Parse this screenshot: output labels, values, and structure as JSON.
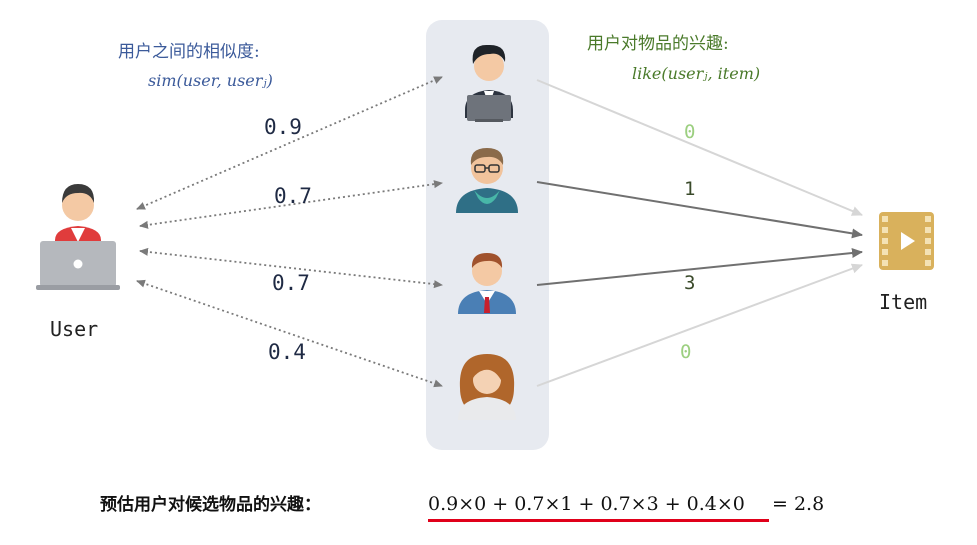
{
  "captions": {
    "user_similarity_title": "用户之间的相似度:",
    "user_similarity_formula": "sim(user, userⱼ)",
    "item_interest_title": "用户对物品的兴趣:",
    "item_interest_formula": "like(userⱼ, item)"
  },
  "nodes": {
    "user_label": "User",
    "item_label": "Item"
  },
  "similarities": [
    "0.9",
    "0.7",
    "0.7",
    "0.4"
  ],
  "interests": [
    "0",
    "1",
    "3",
    "0"
  ],
  "formula": {
    "label": "预估用户对候选物品的兴趣：",
    "expression": "0.9×0 + 0.7×1 + 0.7×3 + 0.4×0",
    "result": " = 2.8"
  },
  "colors": {
    "panel": "#e7eaf0",
    "dotted_arrow": "#7a7a7a",
    "strong_edge": "#707070",
    "weak_edge": "#d6d6d6",
    "underline": "#e0001a",
    "item_icon": "#d9b15c"
  }
}
